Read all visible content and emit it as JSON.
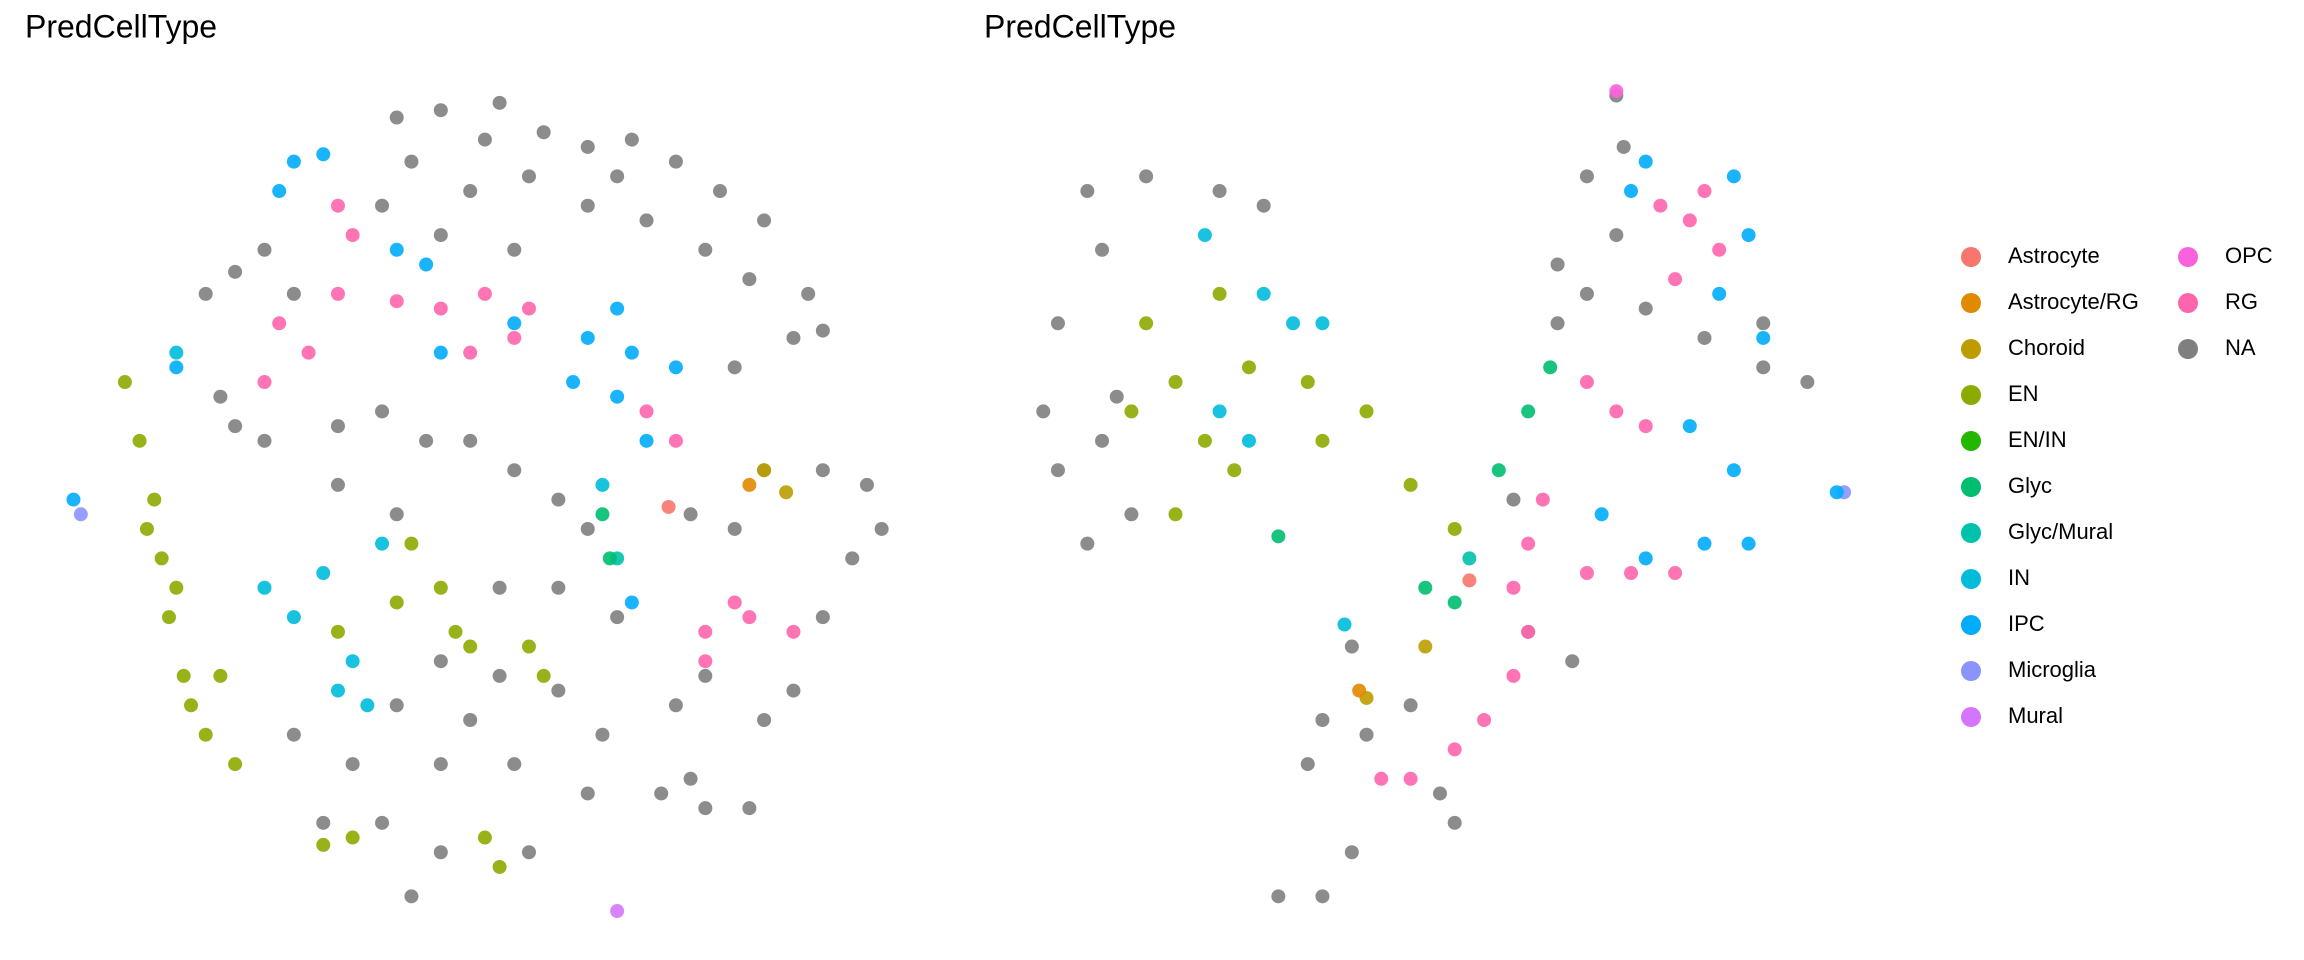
{
  "chart_data": [
    {
      "type": "scatter",
      "title": "PredCellType",
      "xlim": [
        0,
        570
      ],
      "ylim": [
        0,
        565
      ],
      "series": [
        {
          "name": "Astrocyte",
          "color": "#F8766D",
          "x": [
            415
          ],
          "y": [
            280
          ]
        },
        {
          "name": "Astrocyte/RG",
          "color": "#E18A00",
          "x": [
            470
          ],
          "y": [
            295
          ]
        },
        {
          "name": "Choroid",
          "color": "#BE9C00",
          "x": [
            480,
            495
          ],
          "y": [
            305,
            290
          ]
        },
        {
          "name": "EN",
          "color": "#8CAB00",
          "x": [
            45,
            55,
            65,
            70,
            75,
            85,
            100,
            120,
            90,
            60,
            80,
            110,
            240,
            260,
            270,
            230,
            280,
            320,
            330,
            190,
            180,
            200,
            290,
            300
          ],
          "y": [
            365,
            325,
            285,
            245,
            205,
            165,
            125,
            105,
            145,
            265,
            225,
            165,
            255,
            225,
            195,
            215,
            185,
            185,
            165,
            195,
            50,
            55,
            55,
            35
          ]
        },
        {
          "name": "Glyc",
          "color": "#00BE70",
          "x": [
            370,
            375
          ],
          "y": [
            275,
            245
          ]
        },
        {
          "name": "Glyc/Mural",
          "color": "#00C1AB",
          "x": [
            380
          ],
          "y": [
            245
          ]
        },
        {
          "name": "IN",
          "color": "#00BBDA",
          "x": [
            140,
            160,
            180,
            200,
            210,
            220,
            190,
            80,
            370
          ],
          "y": [
            225,
            205,
            235,
            175,
            145,
            255,
            155,
            385,
            295
          ]
        },
        {
          "name": "IPC",
          "color": "#00ACFC",
          "x": [
            160,
            180,
            150,
            360,
            390,
            420,
            380,
            400,
            350,
            260,
            250,
            230,
            310,
            380,
            390,
            10,
            80
          ],
          "y": [
            515,
            520,
            495,
            395,
            385,
            375,
            355,
            325,
            365,
            385,
            445,
            455,
            405,
            415,
            215,
            285,
            375
          ]
        },
        {
          "name": "Microglia",
          "color": "#8B93FF",
          "x": [
            15
          ],
          "y": [
            275
          ]
        },
        {
          "name": "Mural",
          "color": "#D575FE",
          "x": [
            380
          ],
          "y": [
            5
          ]
        },
        {
          "name": "RG",
          "color": "#FF65AC",
          "x": [
            150,
            170,
            190,
            200,
            140,
            230,
            260,
            290,
            320,
            310,
            280,
            190,
            440,
            470,
            500,
            440,
            460,
            400,
            420
          ],
          "y": [
            405,
            385,
            425,
            465,
            365,
            420,
            415,
            425,
            415,
            395,
            385,
            485,
            195,
            205,
            195,
            175,
            215,
            345,
            325
          ]
        },
        {
          "name": "NA",
          "color": "#7F7F7F",
          "x": [
            230,
            260,
            300,
            330,
            360,
            390,
            420,
            450,
            480,
            510,
            520,
            240,
            280,
            320,
            360,
            400,
            440,
            470,
            260,
            310,
            290,
            380,
            460,
            500,
            220,
            120,
            140,
            160,
            100,
            120,
            140,
            110,
            190,
            220,
            250,
            280,
            310,
            340,
            360,
            190,
            230,
            300,
            340,
            380,
            260,
            300,
            340,
            230,
            200,
            260,
            310,
            360,
            180,
            220,
            260,
            320,
            240,
            160,
            280,
            370,
            480,
            520,
            550,
            540,
            520,
            500,
            440,
            420,
            480,
            460,
            430,
            560,
            410,
            440,
            470,
            430
          ],
          "y": [
            545,
            550,
            555,
            535,
            525,
            530,
            515,
            495,
            475,
            425,
            400,
            515,
            495,
            505,
            485,
            475,
            455,
            435,
            465,
            455,
            530,
            505,
            375,
            395,
            485,
            440,
            455,
            425,
            425,
            335,
            325,
            355,
            335,
            345,
            325,
            325,
            305,
            285,
            265,
            295,
            275,
            225,
            225,
            205,
            175,
            165,
            155,
            145,
            105,
            105,
            105,
            85,
            65,
            65,
            45,
            45,
            15,
            125,
            135,
            125,
            305,
            305,
            295,
            245,
            205,
            155,
            165,
            145,
            135,
            265,
            275,
            265,
            85,
            75,
            75,
            95
          ]
        }
      ]
    },
    {
      "type": "scatter",
      "title": "PredCellType",
      "xlim": [
        0,
        570
      ],
      "ylim": [
        0,
        565
      ],
      "series": [
        {
          "name": "Astrocyte",
          "color": "#F8766D",
          "x": [
            305
          ],
          "y": [
            230
          ]
        },
        {
          "name": "Astrocyte/RG",
          "color": "#E18A00",
          "x": [
            230
          ],
          "y": [
            155
          ]
        },
        {
          "name": "Choroid",
          "color": "#BE9C00",
          "x": [
            235,
            275
          ],
          "y": [
            150,
            185
          ]
        },
        {
          "name": "EN",
          "color": "#8CAB00",
          "x": [
            85,
            105,
            125,
            155,
            195,
            235,
            265,
            295,
            105,
            75,
            135,
            145,
            205
          ],
          "y": [
            405,
            365,
            325,
            375,
            365,
            345,
            295,
            265,
            275,
            345,
            425,
            305,
            325
          ]
        },
        {
          "name": "EN/IN",
          "color": "#24B700",
          "x": [],
          "y": []
        },
        {
          "name": "Glyc",
          "color": "#00BE70",
          "x": [
            325,
            345,
            360,
            175,
            275,
            295
          ],
          "y": [
            305,
            345,
            375,
            260,
            225,
            215
          ]
        },
        {
          "name": "Glyc/Mural",
          "color": "#00C1AB",
          "x": [
            305
          ],
          "y": [
            245
          ]
        },
        {
          "name": "IN",
          "color": "#00BBDA",
          "x": [
            125,
            165,
            185,
            155,
            135,
            205,
            220
          ],
          "y": [
            465,
            425,
            405,
            325,
            345,
            405,
            200
          ]
        },
        {
          "name": "IPC",
          "color": "#00ACFC",
          "x": [
            415,
            485,
            495,
            475,
            505,
            425,
            455,
            485,
            495,
            465,
            425,
            395,
            555
          ],
          "y": [
            495,
            505,
            465,
            425,
            395,
            515,
            335,
            305,
            255,
            255,
            245,
            275,
            290
          ]
        },
        {
          "name": "Microglia",
          "color": "#8B93FF",
          "x": [
            560
          ],
          "y": [
            290
          ]
        },
        {
          "name": "Mural",
          "color": "#D575FE",
          "x": [],
          "y": []
        },
        {
          "name": "OPC",
          "color": "#F962DD",
          "x": [
            405
          ],
          "y": [
            563
          ]
        },
        {
          "name": "RG",
          "color": "#FF65AC",
          "x": [
            435,
            455,
            475,
            445,
            465,
            385,
            405,
            425,
            355,
            345,
            335,
            345,
            335,
            315,
            295,
            265,
            245,
            385,
            415,
            445
          ],
          "y": [
            485,
            475,
            455,
            435,
            495,
            365,
            345,
            335,
            285,
            255,
            225,
            195,
            165,
            135,
            115,
            95,
            95,
            235,
            235,
            235
          ]
        },
        {
          "name": "NA",
          "color": "#7F7F7F",
          "x": [
            45,
            85,
            135,
            165,
            55,
            25,
            15,
            25,
            45,
            75,
            65,
            55,
            405,
            410,
            385,
            365,
            385,
            425,
            465,
            505,
            535,
            505,
            405,
            365,
            205,
            195,
            235,
            265,
            285,
            295,
            175,
            205,
            225,
            375,
            345,
            225,
            335
          ],
          "y": [
            495,
            505,
            495,
            485,
            455,
            405,
            345,
            305,
            255,
            275,
            355,
            325,
            560,
            525,
            505,
            445,
            425,
            415,
            395,
            375,
            365,
            405,
            465,
            405,
            135,
            105,
            125,
            145,
            85,
            65,
            15,
            15,
            45,
            175,
            195,
            185,
            285
          ]
        }
      ]
    }
  ]
}
